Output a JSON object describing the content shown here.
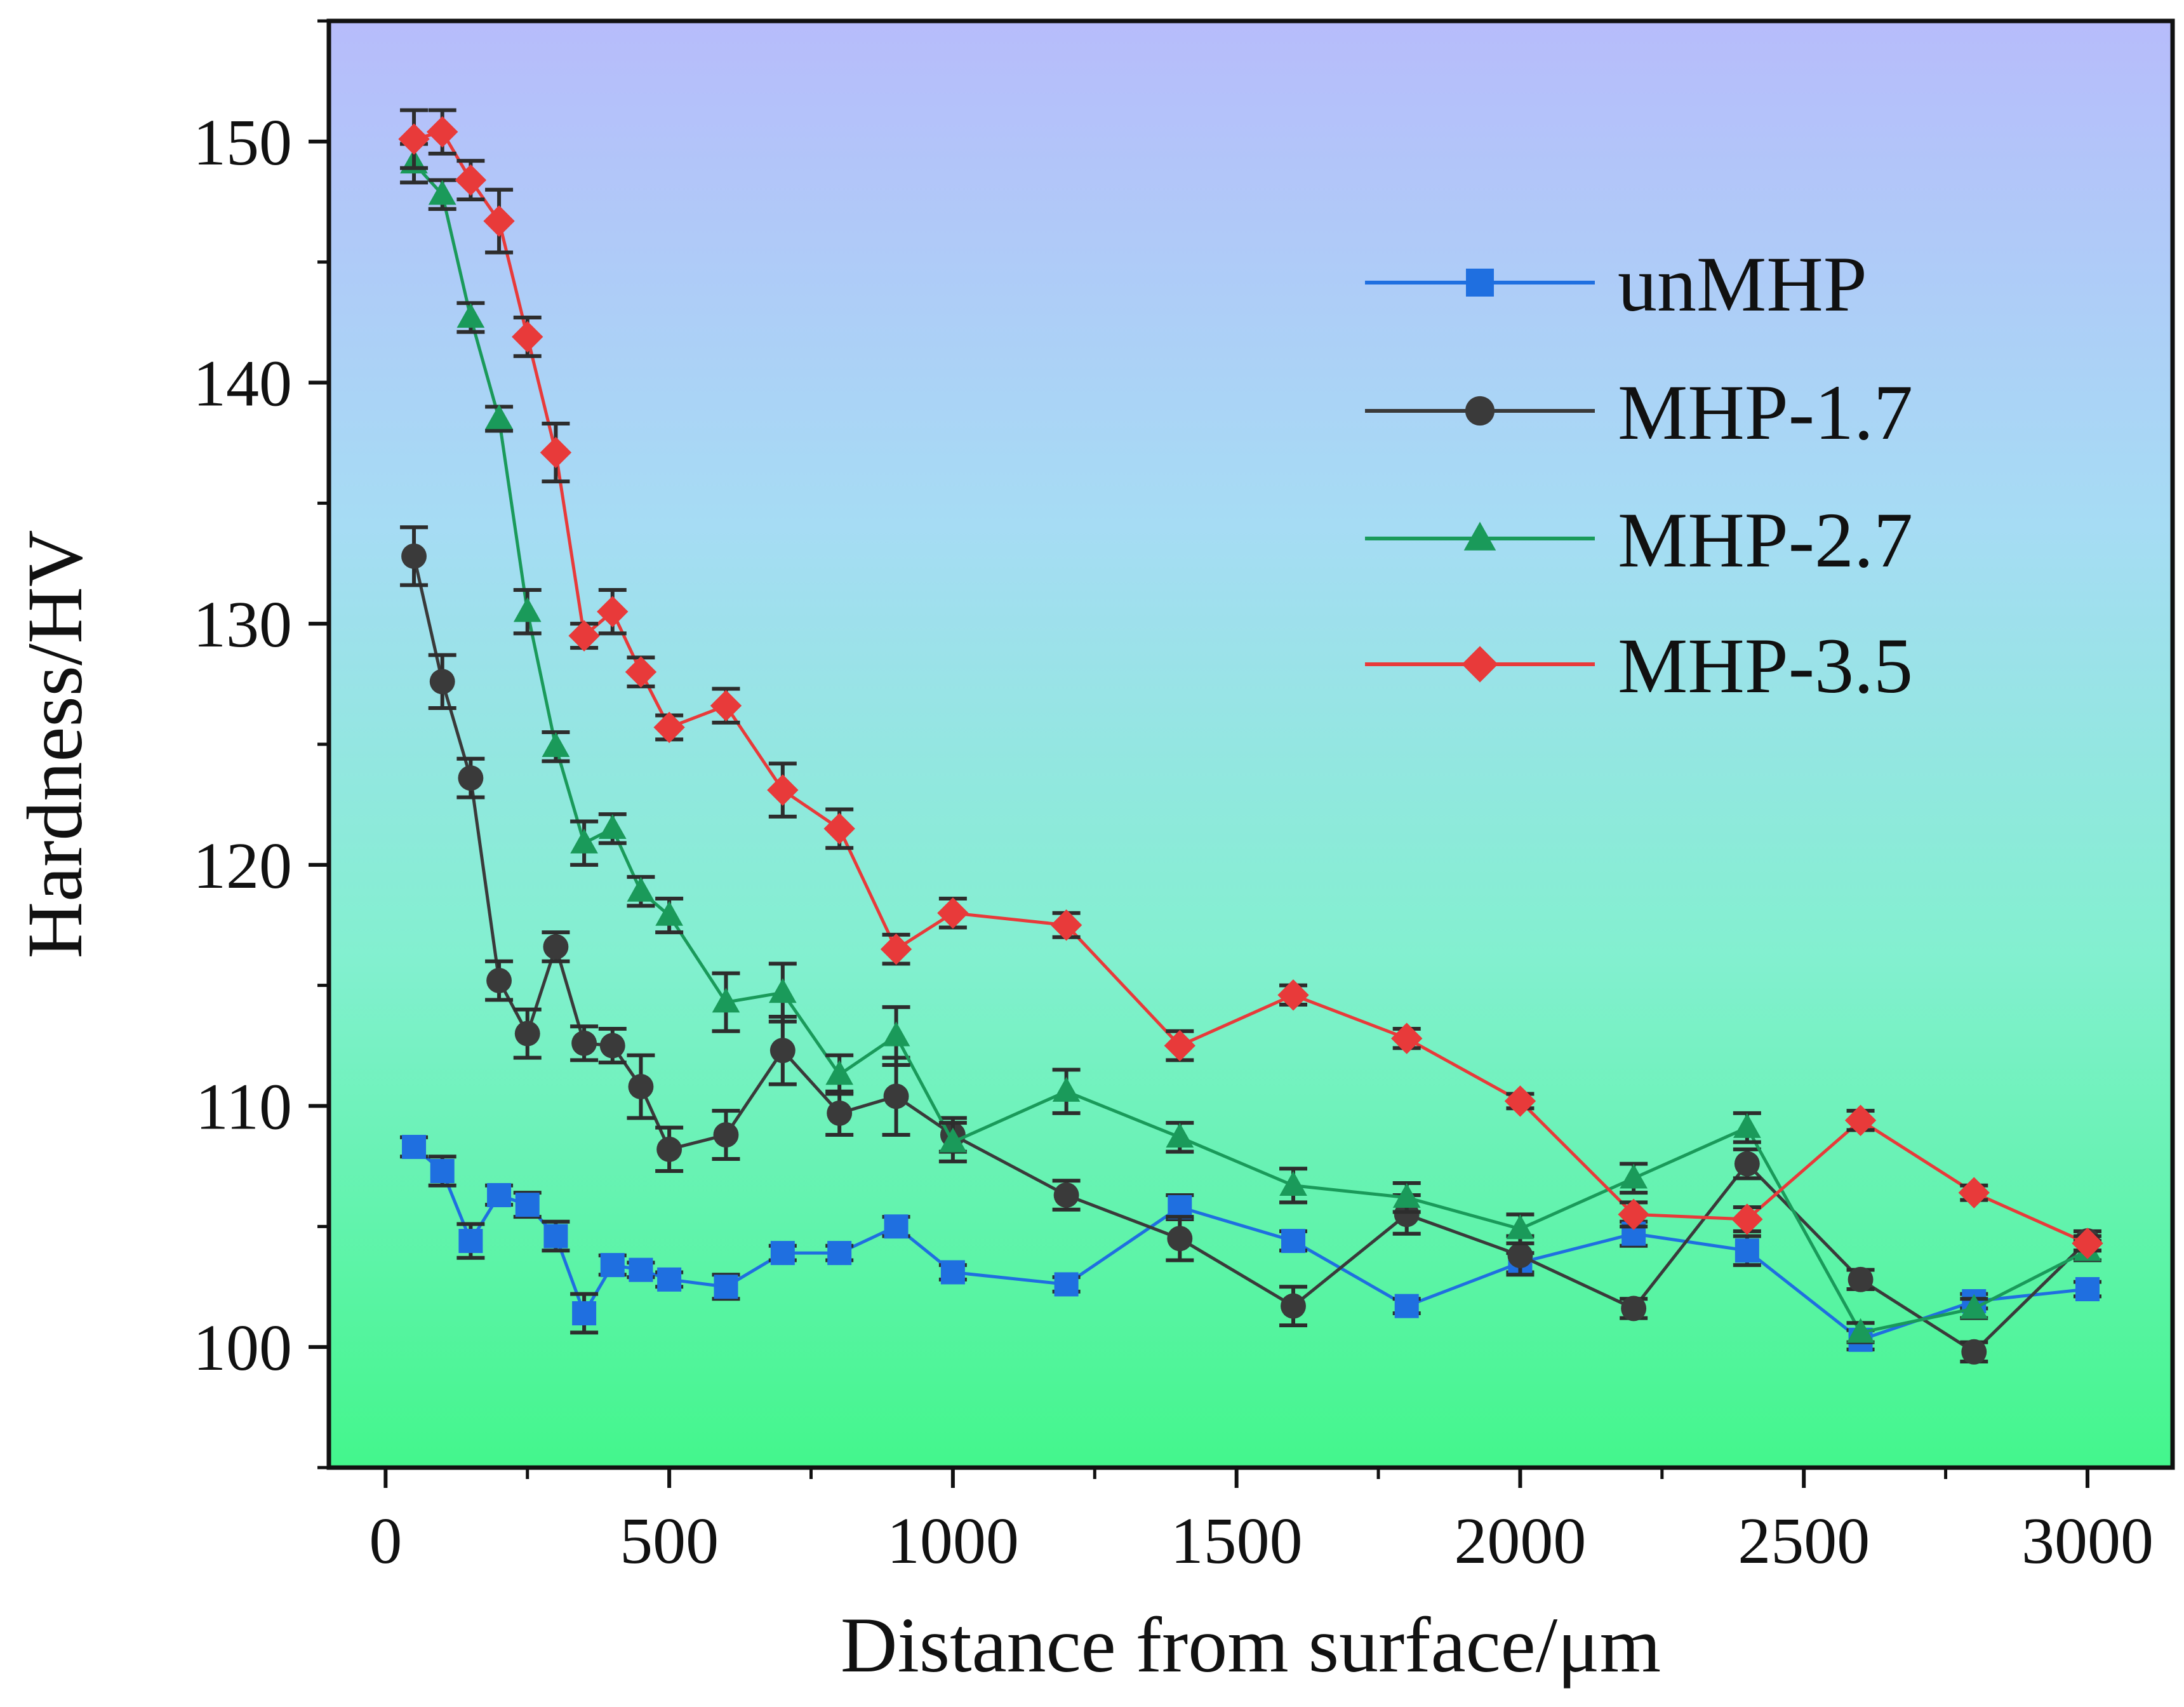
{
  "chart_data": {
    "type": "line",
    "title": "",
    "xlabel": "Distance from surface/μm",
    "ylabel": "Hardness/HV",
    "xlim": [
      -100,
      3150
    ],
    "ylim": [
      95,
      155
    ],
    "xticks": [
      0,
      500,
      1000,
      1500,
      2000,
      2500,
      3000
    ],
    "yticks": [
      100,
      110,
      120,
      130,
      140,
      150
    ],
    "grid": false,
    "legend_position": "right",
    "background": "vertical gradient from lavender blue (top) to green (bottom)",
    "x": [
      50,
      100,
      150,
      200,
      250,
      300,
      350,
      400,
      450,
      500,
      600,
      700,
      800,
      900,
      1000,
      1200,
      1400,
      1600,
      1800,
      2000,
      2200,
      2400,
      2600,
      2800,
      3000
    ],
    "series": [
      {
        "name": "unMHP",
        "color": "#1f6fe0",
        "marker": "square",
        "values": [
          108.3,
          107.3,
          104.4,
          106.3,
          105.9,
          104.6,
          101.4,
          103.4,
          103.2,
          102.8,
          102.5,
          103.9,
          103.9,
          105.0,
          103.1,
          102.6,
          105.8,
          104.4,
          101.7,
          103.5,
          104.7,
          104.0,
          100.3,
          101.9,
          102.4
        ],
        "errors": [
          0.4,
          0.6,
          0.7,
          0.4,
          0.5,
          0.6,
          0.8,
          0.4,
          0.3,
          0.3,
          0.5,
          0.3,
          0.3,
          0.4,
          0.3,
          0.3,
          0.5,
          0.4,
          0.3,
          0.4,
          0.5,
          0.6,
          0.4,
          0.3,
          0.3
        ]
      },
      {
        "name": "MHP-1.7",
        "color": "#3a3a3a",
        "marker": "circle",
        "values": [
          132.8,
          127.6,
          123.6,
          115.2,
          113.0,
          116.6,
          112.6,
          112.5,
          110.8,
          108.2,
          108.8,
          112.3,
          109.7,
          110.4,
          108.8,
          106.3,
          104.5,
          101.7,
          105.5,
          103.8,
          101.6,
          107.6,
          102.8,
          99.8,
          104.4
        ],
        "errors": [
          1.2,
          1.1,
          0.8,
          0.8,
          1.0,
          0.6,
          0.7,
          0.7,
          1.3,
          0.9,
          1.0,
          1.4,
          0.9,
          1.6,
          0.7,
          0.6,
          0.9,
          0.8,
          0.8,
          0.8,
          0.4,
          0.6,
          0.4,
          0.4,
          0.4
        ]
      },
      {
        "name": "MHP-2.7",
        "color": "#1a9a5a",
        "marker": "triangle",
        "values": [
          149.1,
          147.8,
          142.7,
          138.5,
          130.5,
          124.9,
          120.9,
          121.5,
          118.9,
          117.9,
          114.3,
          114.7,
          111.3,
          112.9,
          108.5,
          110.6,
          108.7,
          106.7,
          106.2,
          104.9,
          107.0,
          109.1,
          100.6,
          101.6,
          104.0
        ],
        "errors": [
          0.8,
          0.6,
          0.6,
          0.5,
          0.9,
          0.6,
          0.9,
          0.6,
          0.6,
          0.7,
          1.2,
          1.2,
          0.8,
          1.2,
          0.8,
          0.9,
          0.6,
          0.7,
          0.6,
          0.6,
          0.6,
          0.6,
          0.4,
          0.4,
          0.4
        ]
      },
      {
        "name": "MHP-3.5",
        "color": "#e83a3a",
        "marker": "diamond",
        "values": [
          150.1,
          150.4,
          148.4,
          146.7,
          141.9,
          137.1,
          129.5,
          130.5,
          128.0,
          125.7,
          126.6,
          123.1,
          121.5,
          116.5,
          118.0,
          117.5,
          112.5,
          114.6,
          112.8,
          110.2,
          105.5,
          105.3,
          109.4,
          106.4,
          104.3
        ],
        "errors": [
          1.2,
          0.9,
          0.8,
          1.3,
          0.8,
          1.2,
          0.5,
          0.9,
          0.6,
          0.5,
          0.7,
          1.1,
          0.8,
          0.6,
          0.6,
          0.5,
          0.6,
          0.4,
          0.4,
          0.3,
          0.5,
          0.5,
          0.4,
          0.3,
          0.3
        ]
      }
    ]
  }
}
